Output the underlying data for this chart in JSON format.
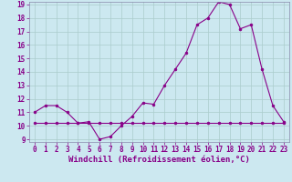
{
  "xlabel": "Windchill (Refroidissement éolien,°C)",
  "line1_x": [
    0,
    1,
    2,
    3,
    4,
    5,
    6,
    7,
    8,
    9,
    10,
    11,
    12,
    13,
    14,
    15,
    16,
    17,
    18,
    19,
    20,
    21,
    22,
    23
  ],
  "line1_y": [
    11,
    11.5,
    11.5,
    11,
    10.2,
    10.3,
    9.0,
    9.2,
    10.0,
    10.7,
    11.7,
    11.6,
    13.0,
    14.2,
    15.4,
    17.5,
    18.0,
    19.2,
    19.0,
    17.2,
    17.5,
    14.2,
    11.5,
    10.3
  ],
  "line2_x": [
    0,
    1,
    2,
    3,
    4,
    5,
    6,
    7,
    8,
    9,
    10,
    11,
    12,
    13,
    14,
    15,
    16,
    17,
    18,
    19,
    20,
    21,
    22,
    23
  ],
  "line2_y": [
    10.2,
    10.2,
    10.2,
    10.2,
    10.2,
    10.2,
    10.2,
    10.2,
    10.2,
    10.2,
    10.2,
    10.2,
    10.2,
    10.2,
    10.2,
    10.2,
    10.2,
    10.2,
    10.2,
    10.2,
    10.2,
    10.2,
    10.2,
    10.2
  ],
  "line_color": "#880088",
  "bg_color": "#cce8f0",
  "ylim": [
    9,
    19
  ],
  "xlim": [
    -0.5,
    23.5
  ],
  "yticks": [
    9,
    10,
    11,
    12,
    13,
    14,
    15,
    16,
    17,
    18,
    19
  ],
  "xticks": [
    0,
    1,
    2,
    3,
    4,
    5,
    6,
    7,
    8,
    9,
    10,
    11,
    12,
    13,
    14,
    15,
    16,
    17,
    18,
    19,
    20,
    21,
    22,
    23
  ],
  "grid_color": "#aacccc",
  "tick_fontsize": 5.5,
  "xlabel_fontsize": 6.5
}
